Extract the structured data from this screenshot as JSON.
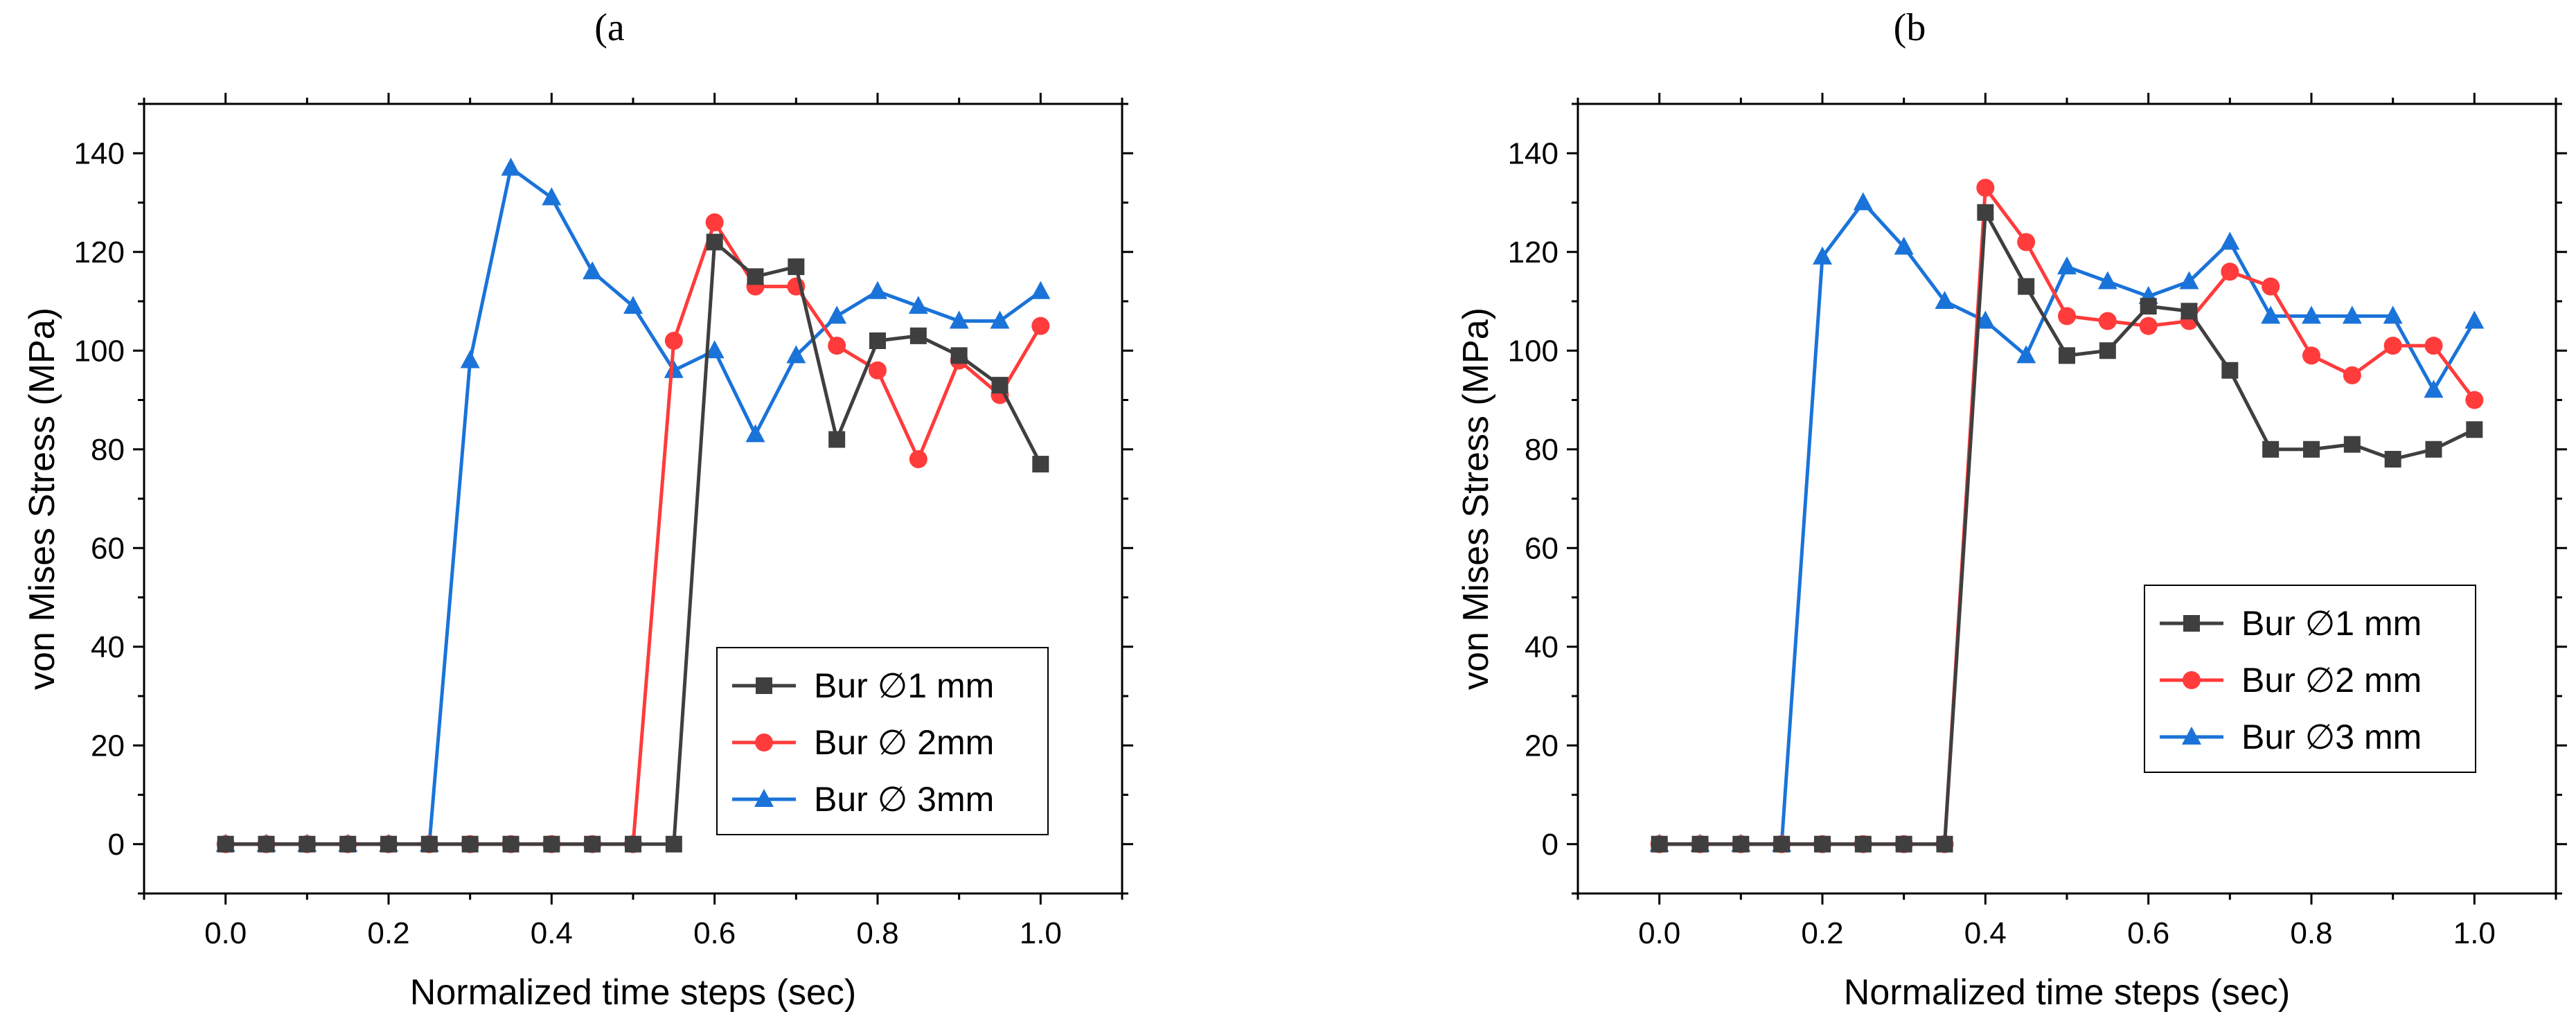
{
  "figure": {
    "panels": [
      "(a",
      "(b"
    ]
  },
  "colors": {
    "series_1mm": "#3f3f3f",
    "series_2mm": "#ff3b3b",
    "series_3mm": "#1a73d9",
    "axis": "#000000"
  },
  "chart_data": [
    {
      "type": "line",
      "panel": "(a",
      "title": "",
      "xlabel": "Normalized time steps (sec)",
      "ylabel": "von Mises Stress (MPa)",
      "xlim": [
        -0.1,
        1.1
      ],
      "ylim": [
        -10,
        150
      ],
      "xticks": [
        "0.0",
        "0.2",
        "0.4",
        "0.6",
        "0.8",
        "1.0"
      ],
      "xtick_values": [
        0.0,
        0.2,
        0.4,
        0.6,
        0.8,
        1.0
      ],
      "yticks": [
        "0",
        "20",
        "40",
        "60",
        "80",
        "100",
        "120",
        "140"
      ],
      "ytick_values": [
        0,
        20,
        40,
        60,
        80,
        100,
        120,
        140
      ],
      "legend_position": "bottom-right",
      "x": [
        0.0,
        0.05,
        0.1,
        0.15,
        0.2,
        0.25,
        0.3,
        0.35,
        0.4,
        0.45,
        0.5,
        0.55,
        0.6,
        0.65,
        0.7,
        0.75,
        0.8,
        0.85,
        0.9,
        0.95,
        1.0
      ],
      "series": [
        {
          "name": "Bur ∅1 mm",
          "marker": "square",
          "color": "#3f3f3f",
          "values": [
            0,
            0,
            0,
            0,
            0,
            0,
            0,
            0,
            0,
            0,
            0,
            0,
            122,
            115,
            117,
            82,
            102,
            103,
            99,
            93,
            77
          ]
        },
        {
          "name": "Bur ∅ 2mm",
          "marker": "circle",
          "color": "#ff3b3b",
          "values": [
            0,
            0,
            0,
            0,
            0,
            0,
            0,
            0,
            0,
            0,
            0,
            102,
            126,
            113,
            113,
            101,
            96,
            78,
            98,
            91,
            105
          ]
        },
        {
          "name": "Bur ∅ 3mm",
          "marker": "triangle",
          "color": "#1a73d9",
          "values": [
            0,
            0,
            0,
            0,
            0,
            0,
            98,
            137,
            131,
            116,
            109,
            96,
            100,
            83,
            99,
            107,
            112,
            109,
            106,
            106,
            112
          ]
        }
      ]
    },
    {
      "type": "line",
      "panel": "(b",
      "title": "",
      "xlabel": "Normalized time steps (sec)",
      "ylabel": "von Mises Stress (MPa)",
      "xlim": [
        -0.1,
        1.1
      ],
      "ylim": [
        -10,
        150
      ],
      "xticks": [
        "0.0",
        "0.2",
        "0.4",
        "0.6",
        "0.8",
        "1.0"
      ],
      "xtick_values": [
        0.0,
        0.2,
        0.4,
        0.6,
        0.8,
        1.0
      ],
      "yticks": [
        "0",
        "20",
        "40",
        "60",
        "80",
        "100",
        "120",
        "140"
      ],
      "ytick_values": [
        0,
        20,
        40,
        60,
        80,
        100,
        120,
        140
      ],
      "legend_position": "center-right",
      "x": [
        0.0,
        0.05,
        0.1,
        0.15,
        0.2,
        0.25,
        0.3,
        0.35,
        0.4,
        0.45,
        0.5,
        0.55,
        0.6,
        0.65,
        0.7,
        0.75,
        0.8,
        0.85,
        0.9,
        0.95,
        1.0
      ],
      "series": [
        {
          "name": "Bur ∅1 mm",
          "marker": "square",
          "color": "#3f3f3f",
          "values": [
            0,
            0,
            0,
            0,
            0,
            0,
            0,
            0,
            128,
            113,
            99,
            100,
            109,
            108,
            96,
            80,
            80,
            81,
            78,
            80,
            84
          ]
        },
        {
          "name": "Bur ∅2 mm",
          "marker": "circle",
          "color": "#ff3b3b",
          "values": [
            0,
            0,
            0,
            0,
            0,
            0,
            0,
            0,
            133,
            122,
            107,
            106,
            105,
            106,
            116,
            113,
            99,
            95,
            101,
            101,
            90
          ]
        },
        {
          "name": "Bur ∅3 mm",
          "marker": "triangle",
          "color": "#1a73d9",
          "values": [
            0,
            0,
            0,
            0,
            119,
            130,
            121,
            110,
            106,
            99,
            117,
            114,
            111,
            114,
            122,
            107,
            107,
            107,
            107,
            92,
            106
          ]
        }
      ]
    }
  ]
}
